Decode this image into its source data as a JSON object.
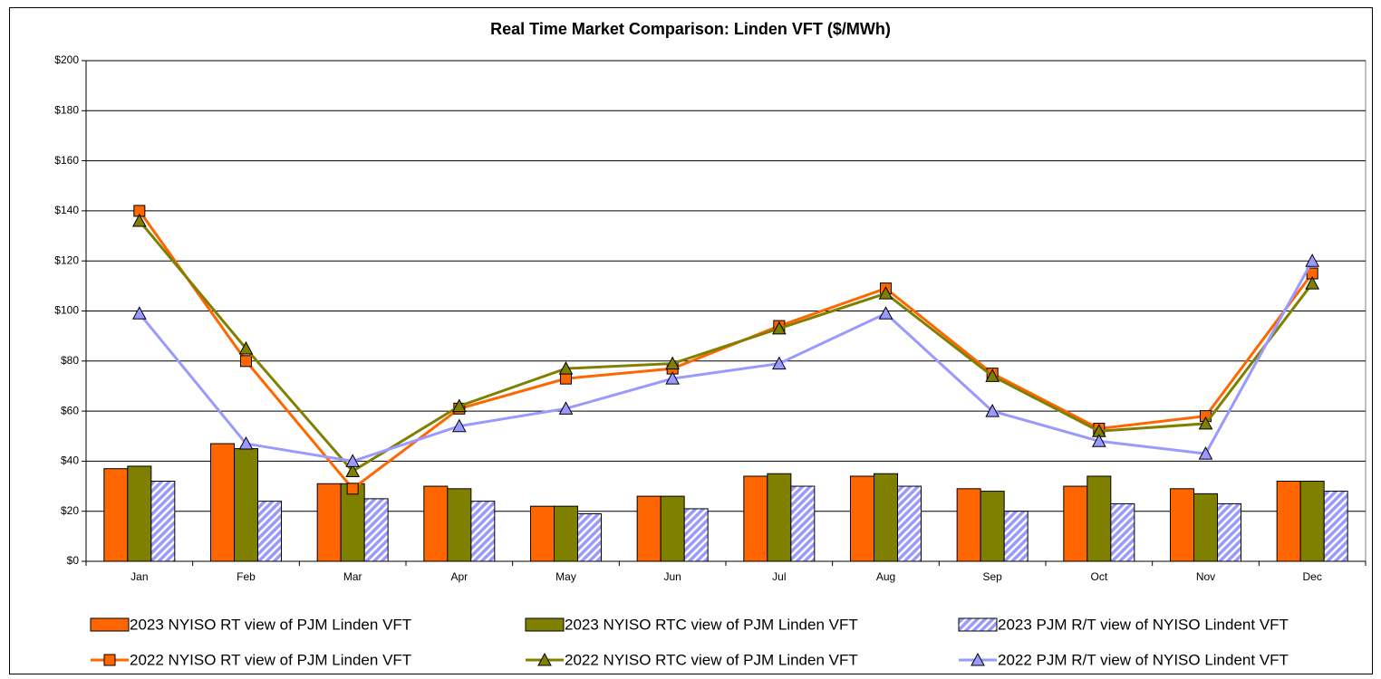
{
  "chart_data": {
    "type": "bar_line",
    "title": "Real Time Market Comparison: Linden VFT ($/MWh)",
    "categories": [
      "Jan",
      "Feb",
      "Mar",
      "Apr",
      "May",
      "Jun",
      "Jul",
      "Aug",
      "Sep",
      "Oct",
      "Nov",
      "Dec"
    ],
    "ylim": [
      0,
      200
    ],
    "yticks": [
      {
        "value": 0,
        "label": "$0"
      },
      {
        "value": 20,
        "label": "$20"
      },
      {
        "value": 40,
        "label": "$40"
      },
      {
        "value": 60,
        "label": "$60"
      },
      {
        "value": 80,
        "label": "$80"
      },
      {
        "value": 100,
        "label": "$100"
      },
      {
        "value": 120,
        "label": "$120"
      },
      {
        "value": 140,
        "label": "$140"
      },
      {
        "value": 160,
        "label": "$160"
      },
      {
        "value": 180,
        "label": "$180"
      },
      {
        "value": 200,
        "label": "$200"
      }
    ],
    "grid": true,
    "legend": "bottom",
    "series": [
      {
        "name": "2023 NYISO RT view of PJM Linden VFT",
        "type": "bar",
        "color": "#ff6600",
        "values": [
          37,
          47,
          31,
          30,
          22,
          26,
          34,
          34,
          29,
          30,
          29,
          32
        ]
      },
      {
        "name": "2023 NYISO RTC view of PJM Linden VFT",
        "type": "bar",
        "color": "#808000",
        "values": [
          38,
          45,
          31,
          29,
          22,
          26,
          35,
          35,
          28,
          34,
          27,
          32
        ]
      },
      {
        "name": "2023 PJM R/T view of NYISO Lindent VFT",
        "type": "bar",
        "color": "#9999ff",
        "hatch": true,
        "values": [
          32,
          24,
          25,
          24,
          19,
          21,
          30,
          30,
          20,
          23,
          23,
          28
        ]
      },
      {
        "name": "2022 NYISO RT view of PJM Linden VFT",
        "type": "line",
        "color": "#ff6600",
        "marker": "square",
        "values": [
          140,
          80,
          29,
          61,
          73,
          77,
          94,
          109,
          75,
          53,
          58,
          115
        ]
      },
      {
        "name": "2022 NYISO RTC view of PJM Linden VFT",
        "type": "line",
        "color": "#808000",
        "marker": "triangle",
        "values": [
          136,
          85,
          36,
          62,
          77,
          79,
          93,
          107,
          74,
          52,
          55,
          111
        ]
      },
      {
        "name": "2022 PJM R/T view of NYISO Lindent VFT",
        "type": "line",
        "color": "#9999ff",
        "marker": "triangle",
        "values": [
          99,
          47,
          40,
          54,
          61,
          73,
          79,
          99,
          60,
          48,
          43,
          120
        ]
      }
    ]
  }
}
